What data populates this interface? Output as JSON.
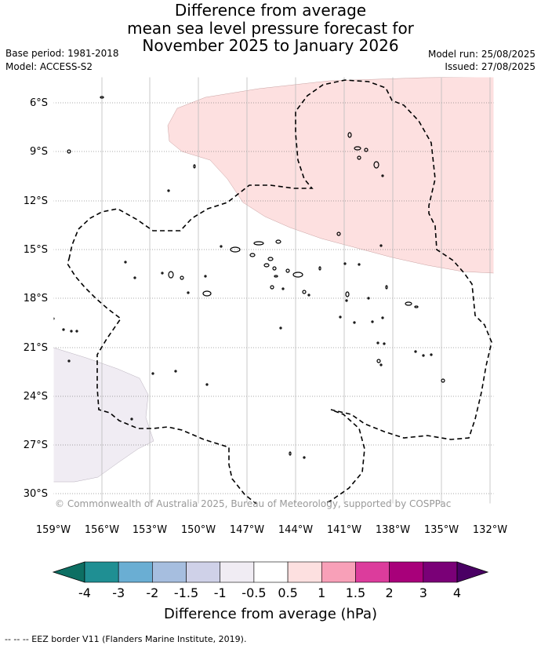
{
  "title": {
    "line1": "Difference from average",
    "line2": "mean sea level pressure forecast for",
    "line3": "November 2025 to January 2026"
  },
  "meta": {
    "base_period": "Base period: 1981-2018",
    "model": "Model: ACCESS-S2",
    "model_run": "Model run: 25/08/2025",
    "issued": "Issued: 27/08/2025"
  },
  "map": {
    "lat_labels": [
      "6°S",
      "9°S",
      "12°S",
      "15°S",
      "18°S",
      "21°S",
      "24°S",
      "27°S",
      "30°S"
    ],
    "lon_labels": [
      "159°W",
      "156°W",
      "153°W",
      "150°W",
      "147°W",
      "144°W",
      "141°W",
      "138°W",
      "135°W",
      "132°W"
    ],
    "copyright": "© Commonwealth of Australia 2025, Bureau of Meteorology, supported by COSPPac",
    "anomaly_regions": [
      {
        "sign": "positive",
        "range": "0.5 to 1 hPa",
        "color": "#fde0e0",
        "location": "north-east"
      },
      {
        "sign": "negative",
        "range": "-1 to -0.5 hPa",
        "color": "#f0ecf3",
        "location": "south-west"
      }
    ]
  },
  "colorbar": {
    "title": "Difference from average (hPa)",
    "ticks": [
      "-4",
      "-3",
      "-2",
      "-1.5",
      "-1",
      "-0.5",
      "0.5",
      "1",
      "1.5",
      "2",
      "3",
      "4"
    ],
    "colors": [
      "#1f8f93",
      "#6aaed3",
      "#a6bedf",
      "#cfd1e8",
      "#f0ecf3",
      "#ffffff",
      "#fde0e0",
      "#f8a0b8",
      "#dc3c9c",
      "#a8007a",
      "#7a0077"
    ],
    "extend_low_color": "#0d6f63",
    "extend_high_color": "#4a0064"
  },
  "footnote": "-- -- -- EEZ border V11 (Flanders Marine Institute, 2019)."
}
